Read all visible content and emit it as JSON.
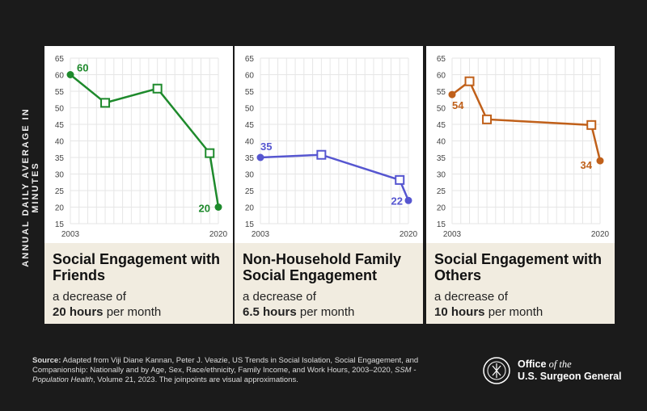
{
  "ylabel": "ANNUAL DAILY AVERAGE IN MINUTES",
  "chart_data": [
    {
      "type": "line",
      "color": "#1e8a2c",
      "ylim": [
        15,
        65
      ],
      "yticks": [
        15,
        20,
        25,
        30,
        35,
        40,
        45,
        50,
        55,
        60,
        65
      ],
      "xlim": [
        2003,
        2020
      ],
      "xticks": [
        "2003",
        "2020"
      ],
      "x": [
        2003,
        2007,
        2013,
        2019,
        2020
      ],
      "values": [
        60,
        51.5,
        55.8,
        36.3,
        20
      ],
      "labels": [
        "60",
        "20"
      ],
      "title": "Social Engagement with Friends",
      "subtitle_pre": "a decrease of",
      "subtitle_bold": "20 hours",
      "subtitle_post": " per month"
    },
    {
      "type": "line",
      "color": "#5656d0",
      "ylim": [
        15,
        65
      ],
      "yticks": [
        15,
        20,
        25,
        30,
        35,
        40,
        45,
        50,
        55,
        60,
        65
      ],
      "xlim": [
        2003,
        2020
      ],
      "xticks": [
        "2003",
        "2020"
      ],
      "x": [
        2003,
        2010,
        2019,
        2020
      ],
      "values": [
        35,
        35.8,
        28.2,
        22
      ],
      "labels": [
        "35",
        "22"
      ],
      "title": "Non-Household Family Social Engagement",
      "subtitle_pre": "a decrease of",
      "subtitle_bold": "6.5 hours",
      "subtitle_post": " per month"
    },
    {
      "type": "line",
      "color": "#c0601a",
      "ylim": [
        15,
        65
      ],
      "yticks": [
        15,
        20,
        25,
        30,
        35,
        40,
        45,
        50,
        55,
        60,
        65
      ],
      "xlim": [
        2003,
        2020
      ],
      "xticks": [
        "2003",
        "2020"
      ],
      "x": [
        2003,
        2005,
        2007,
        2019,
        2020
      ],
      "values": [
        54,
        58,
        46.5,
        44.8,
        34
      ],
      "labels": [
        "54",
        "34"
      ],
      "title": "Social Engagement with Others",
      "subtitle_pre": "a decrease of",
      "subtitle_bold": "10 hours",
      "subtitle_post": " per month"
    }
  ],
  "source": {
    "bold": "Source:",
    "text": " Adapted from Viji Diane Kannan, Peter J. Veazie, US Trends in Social Isolation, Social Engagement, and Companionship: Nationally and by Age, Sex, Race/ethnicity, Family Income, and Work Hours, 2003–2020, ",
    "italic": "SSM - Population Health",
    "tail": ", Volume 21, 2023. The joinpoints are visual approximations."
  },
  "logo": {
    "line1a": "Office",
    "line1b": " of the",
    "line2": "U.S. Surgeon General"
  }
}
